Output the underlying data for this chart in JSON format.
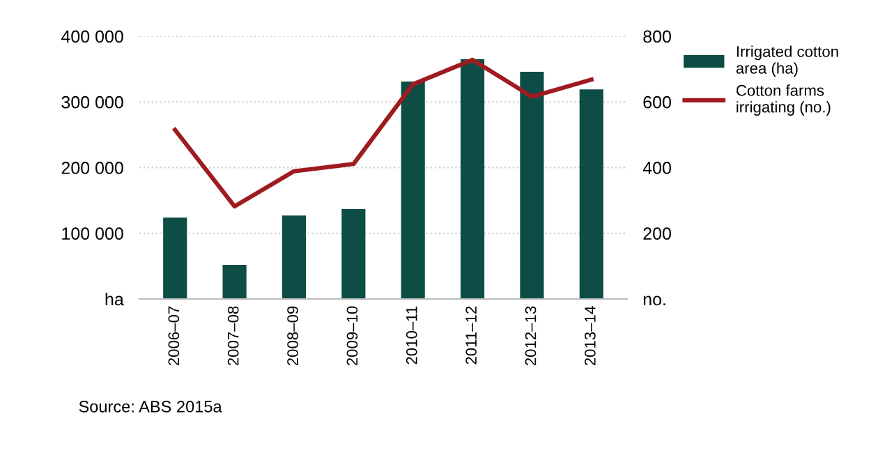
{
  "chart_data": {
    "type": "bar",
    "categories": [
      "2006–07",
      "2007–08",
      "2008–09",
      "2009–10",
      "2010–11",
      "2011–12",
      "2012–13",
      "2013–14"
    ],
    "series": [
      {
        "name": "Irrigated cotton area (ha)",
        "color": "#0d4d45",
        "values": [
          124000,
          52000,
          127000,
          137000,
          331000,
          365000,
          346000,
          319000
        ]
      },
      {
        "name": "Cotton farms irrigating (no.)",
        "type": "line",
        "axis": "y2",
        "color": "#9e1b20",
        "values": [
          515,
          282,
          389,
          411,
          654,
          728,
          616,
          668
        ]
      }
    ],
    "ylim": [
      0,
      400000
    ],
    "yticks": [
      {
        "value": 0,
        "label": "ha"
      },
      {
        "value": 100000,
        "label": "100 000"
      },
      {
        "value": 200000,
        "label": "200 000"
      },
      {
        "value": 300000,
        "label": "300 000"
      },
      {
        "value": 400000,
        "label": "400 000"
      }
    ],
    "y2lim": [
      0,
      800
    ],
    "y2ticks": [
      {
        "value": 0,
        "label": "no."
      },
      200,
      400,
      600,
      800
    ],
    "grid": "y",
    "legend": "right",
    "marker": "none",
    "line_style": "solid",
    "annotations": [
      "Source: ABS 2015a"
    ]
  }
}
